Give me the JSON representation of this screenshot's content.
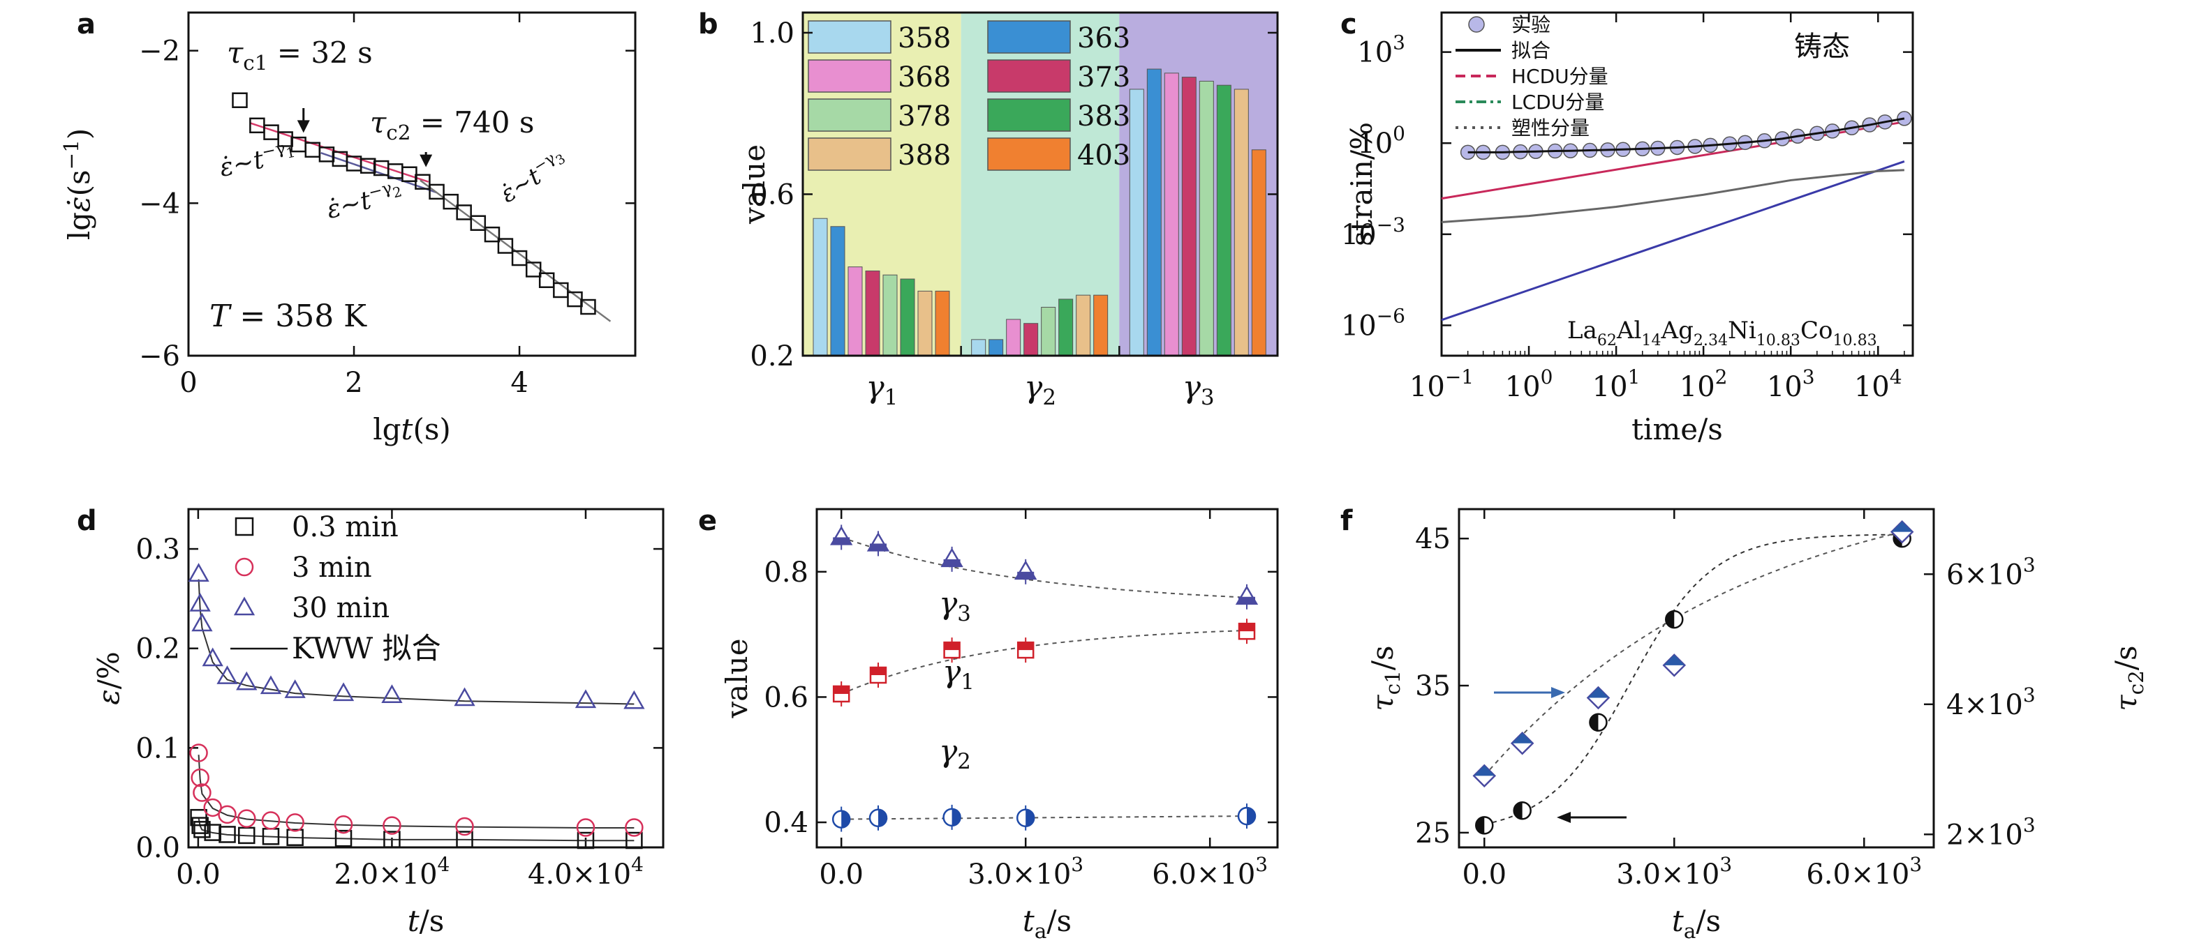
{
  "chart_data": [
    {
      "panel": "a",
      "type": "scatter",
      "xlabel": "lgt(s)",
      "ylabel": "lgε̇(s⁻¹)",
      "xlim": [
        0,
        5.4
      ],
      "ylim": [
        -6,
        -1.5
      ],
      "xticks": [
        "0",
        "2",
        "4"
      ],
      "yticks": [
        "−2",
        "−4",
        "−6"
      ],
      "x": [
        0.62,
        0.83,
        1.0,
        1.17,
        1.33,
        1.5,
        1.67,
        1.83,
        2.0,
        2.17,
        2.33,
        2.5,
        2.67,
        2.83,
        3.0,
        3.17,
        3.33,
        3.5,
        3.67,
        3.83,
        4.0,
        4.17,
        4.33,
        4.5,
        4.67,
        4.83
      ],
      "y": [
        -2.65,
        -2.98,
        -3.07,
        -3.16,
        -3.23,
        -3.3,
        -3.36,
        -3.42,
        -3.48,
        -3.51,
        -3.54,
        -3.58,
        -3.62,
        -3.72,
        -3.85,
        -3.98,
        -4.12,
        -4.26,
        -4.41,
        -4.56,
        -4.72,
        -4.87,
        -5.01,
        -5.14,
        -5.26,
        -5.36
      ],
      "annotations": {
        "tau1": "τc1 = 32 s",
        "tau2": "τc2 = 740 s",
        "law1": "ε̇~t−γ1",
        "law2": "ε̇~t−γ2",
        "law3": "ε̇~t−γ3",
        "temp": "T = 358 K"
      }
    },
    {
      "panel": "b",
      "type": "bar",
      "ylabel": "value",
      "ylim": [
        0.2,
        1.05
      ],
      "yticks": [
        "0.2",
        "0.6",
        "1.0"
      ],
      "categories": [
        "γ1",
        "γ2",
        "γ3"
      ],
      "band_colors": [
        "#e9efb2",
        "#bfe8d6",
        "#b9addf"
      ],
      "series": [
        {
          "name": "358",
          "color": "#a8d8ee",
          "values": [
            0.54,
            0.24,
            0.86
          ]
        },
        {
          "name": "363",
          "color": "#3a8fd3",
          "values": [
            0.52,
            0.24,
            0.91
          ]
        },
        {
          "name": "368",
          "color": "#e88fd0",
          "values": [
            0.42,
            0.29,
            0.9
          ]
        },
        {
          "name": "373",
          "color": "#c83a6a",
          "values": [
            0.41,
            0.28,
            0.89
          ]
        },
        {
          "name": "378",
          "color": "#a6d9a6",
          "values": [
            0.4,
            0.32,
            0.88
          ]
        },
        {
          "name": "383",
          "color": "#3aa85a",
          "values": [
            0.39,
            0.34,
            0.87
          ]
        },
        {
          "name": "388",
          "color": "#e8c08a",
          "values": [
            0.36,
            0.35,
            0.86
          ]
        },
        {
          "name": "403",
          "color": "#f08030",
          "values": [
            0.36,
            0.35,
            0.71
          ]
        }
      ]
    },
    {
      "panel": "c",
      "type": "line",
      "xlabel": "time/s",
      "ylabel": "strain/%",
      "xscale": "log",
      "yscale": "log",
      "xlim": [
        0.1,
        25000
      ],
      "ylim": [
        1e-07,
        20000
      ],
      "xticks": [
        "10−1",
        "100",
        "101",
        "102",
        "103",
        "104"
      ],
      "yticks": [
        "10−6",
        "10−3",
        "100",
        "103"
      ],
      "title": "铸态",
      "composition": "La62Al14Ag2.34Ni10.83Co10.83",
      "legend": [
        "实验",
        "拟合",
        "HCDU分量",
        "LCDU分量",
        "塑性分量"
      ],
      "experiment_x": [
        0.2,
        0.3,
        0.5,
        0.8,
        1.2,
        2,
        3,
        5,
        8,
        12,
        20,
        30,
        50,
        80,
        120,
        200,
        300,
        500,
        800,
        1200,
        2000,
        3000,
        5000,
        8000,
        12000,
        20000
      ],
      "experiment_y": [
        0.5,
        0.5,
        0.5,
        0.52,
        0.53,
        0.55,
        0.56,
        0.58,
        0.6,
        0.62,
        0.65,
        0.68,
        0.72,
        0.78,
        0.85,
        0.95,
        1.05,
        1.2,
        1.4,
        1.7,
        2.1,
        2.5,
        3.2,
        4.0,
        5.0,
        6.5
      ],
      "hcdu": {
        "x": [
          0.1,
          20000
        ],
        "y": [
          0.015,
          5.0
        ]
      },
      "lcdu": {
        "x": [
          0.1,
          1,
          10,
          100,
          1000,
          10000,
          20000
        ],
        "y": [
          0.0025,
          0.004,
          0.008,
          0.02,
          0.06,
          0.12,
          0.13
        ]
      },
      "plastic": {
        "x": [
          0.1,
          20000
        ],
        "y": [
          1.5e-06,
          0.25
        ]
      }
    },
    {
      "panel": "d",
      "type": "scatter",
      "xlabel": "t/s",
      "ylabel": "ε/%",
      "xlim": [
        -1000,
        48000
      ],
      "ylim": [
        0,
        0.34
      ],
      "xticks": [
        "0.0",
        "2.0×104",
        "4.0×104"
      ],
      "yticks": [
        "0.0",
        "0.1",
        "0.2",
        "0.3"
      ],
      "series": [
        {
          "name": "0.3 min",
          "color": "#111111",
          "x": [
            50,
            200,
            400,
            1500,
            3000,
            5000,
            7500,
            10000,
            15000,
            20000,
            27500,
            40000,
            45000
          ],
          "y": [
            0.03,
            0.022,
            0.018,
            0.015,
            0.013,
            0.012,
            0.011,
            0.01,
            0.009,
            0.008,
            0.008,
            0.007,
            0.007
          ]
        },
        {
          "name": "3 min",
          "color": "#d6305a",
          "x": [
            50,
            200,
            400,
            1500,
            3000,
            5000,
            7500,
            10000,
            15000,
            20000,
            27500,
            40000,
            45000
          ],
          "y": [
            0.095,
            0.07,
            0.055,
            0.04,
            0.033,
            0.029,
            0.027,
            0.025,
            0.023,
            0.022,
            0.021,
            0.02,
            0.02
          ]
        },
        {
          "name": "30 min",
          "color": "#4a4aa0",
          "x": [
            50,
            200,
            400,
            1500,
            3000,
            5000,
            7500,
            10000,
            15000,
            20000,
            27500,
            40000,
            45000
          ],
          "y": [
            0.275,
            0.245,
            0.225,
            0.19,
            0.172,
            0.166,
            0.162,
            0.158,
            0.155,
            0.153,
            0.15,
            0.148,
            0.147
          ]
        }
      ],
      "fit_label": "KWW 拟合"
    },
    {
      "panel": "e",
      "type": "scatter",
      "xlabel": "ta/s",
      "ylabel": "value",
      "xlim": [
        -400,
        7100
      ],
      "ylim": [
        0.36,
        0.9
      ],
      "xticks": [
        "0.0",
        "3.0×103",
        "6.0×103"
      ],
      "yticks": [
        "0.4",
        "0.6",
        "0.8"
      ],
      "series": [
        {
          "name": "γ3",
          "color": "#4a4aa0",
          "x": [
            0,
            600,
            1800,
            3000,
            6600
          ],
          "values": [
            0.855,
            0.845,
            0.82,
            0.8,
            0.76
          ]
        },
        {
          "name": "γ1",
          "color": "#d0202a",
          "x": [
            0,
            600,
            1800,
            3000,
            6600
          ],
          "values": [
            0.605,
            0.635,
            0.675,
            0.675,
            0.705
          ]
        },
        {
          "name": "γ2",
          "color": "#1e4aa8",
          "x": [
            0,
            600,
            1800,
            3000,
            6600
          ],
          "values": [
            0.405,
            0.407,
            0.408,
            0.407,
            0.41
          ]
        }
      ]
    },
    {
      "panel": "f",
      "type": "scatter",
      "xlabel": "ta/s",
      "ylabel": "τc1/s",
      "ylabel2": "τc2/s",
      "xlim": [
        -400,
        7100
      ],
      "ylim": [
        24,
        47
      ],
      "ylim2": [
        1800,
        7000
      ],
      "xticks": [
        "0.0",
        "3.0×103",
        "6.0×103"
      ],
      "yticks": [
        "25",
        "35",
        "45"
      ],
      "yticks2": [
        "2×103",
        "4×103",
        "6×103"
      ],
      "series": [
        {
          "name": "τc1",
          "axis": "left",
          "x": [
            0,
            600,
            1800,
            3000,
            6600
          ],
          "values": [
            25.5,
            26.5,
            32.5,
            39.5,
            45.0
          ]
        },
        {
          "name": "τc2",
          "axis": "right",
          "x": [
            0,
            600,
            1800,
            3000,
            6600
          ],
          "values": [
            2900,
            3400,
            4100,
            4600,
            6650
          ]
        }
      ]
    }
  ]
}
